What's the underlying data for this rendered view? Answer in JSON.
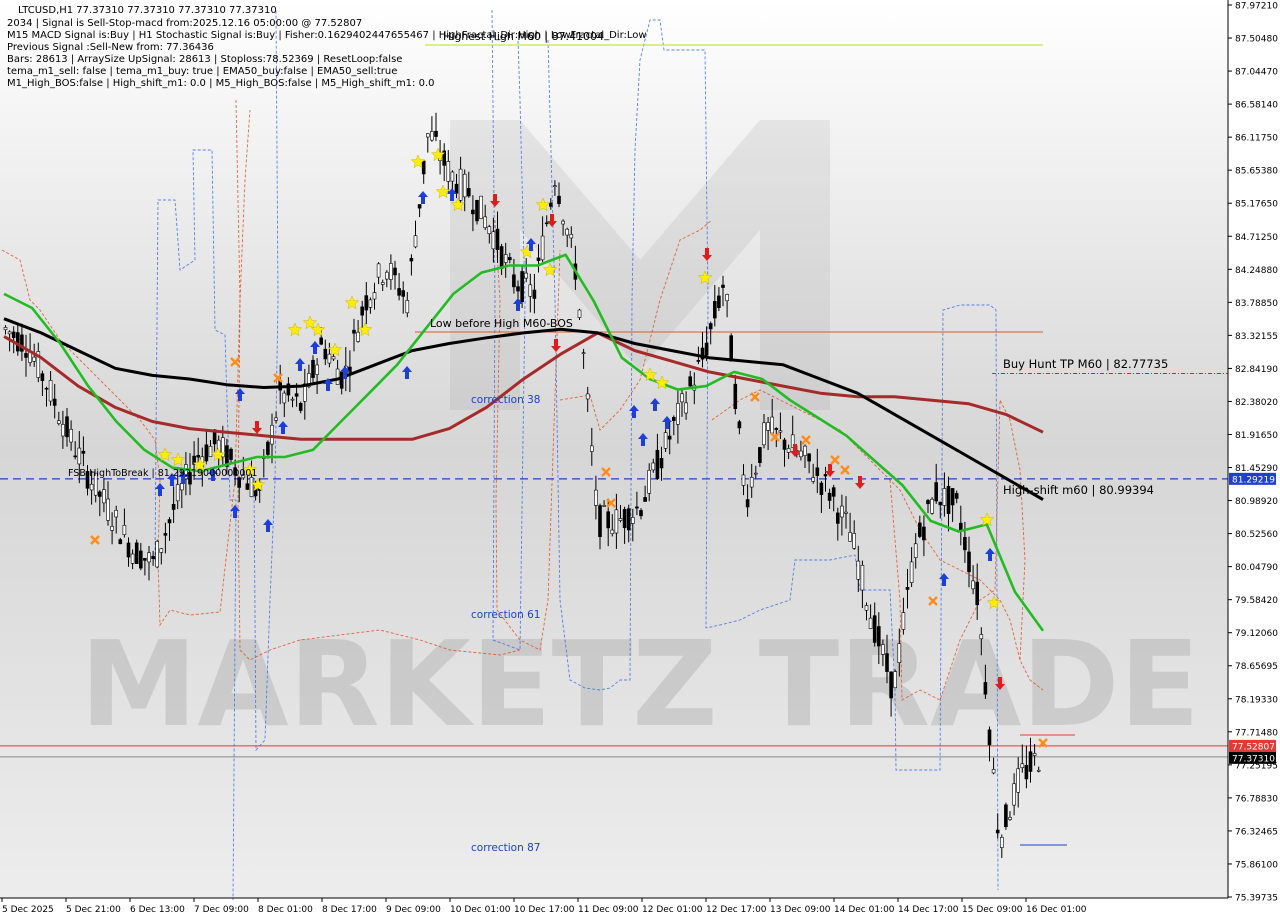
{
  "chart_data": {
    "type": "line",
    "symbol": "LTCUSD,H1",
    "ohlc_header": "LTCUSD,H1  77.37310 77.37310 77.37310 77.37310",
    "info_lines": [
      "2034 | Signal is Sell-Stop-macd from:2025.12.16 05:00:00 @ 77.52807",
      "M15 MACD Signal is:Buy | H1 Stochastic Signal is:Buy | Fisher:0.1629402447655467 | HighFractal_Dir:High | LowFractal_Dir:Low",
      "Previous Signal :Sell-New from: 77.36436",
      "Bars: 28613 | ArraySize UpSignal: 28613 | Stoploss:78.52369 | ResetLoop:false",
      "tema_m1_sell: false | tema_m1_buy: true | EMA50_buy:false | EMA50_sell:true",
      "M1_High_BOS:false | High_shift_m1: 0.0 | M5_High_BOS:false | M5_High_shift_m1: 0.0"
    ],
    "y_ticks": [
      "87.97210",
      "87.50480",
      "87.04470",
      "86.58140",
      "86.11750",
      "85.65380",
      "85.17650",
      "84.71250",
      "84.24880",
      "83.78850",
      "83.32155",
      "82.84190",
      "82.38020",
      "81.91650",
      "81.45290",
      "80.98920",
      "80.52560",
      "80.04790",
      "79.58420",
      "79.12060",
      "78.65695",
      "78.19330",
      "77.71480",
      "77.25195",
      "76.78830",
      "76.32465",
      "75.86100",
      "75.39735"
    ],
    "ylim": [
      75.39735,
      87.9721
    ],
    "x_ticks": [
      "5 Dec 2025",
      "5 Dec 21:00",
      "6 Dec 13:00",
      "7 Dec 09:00",
      "8 Dec 01:00",
      "8 Dec 17:00",
      "9 Dec 09:00",
      "10 Dec 01:00",
      "10 Dec 17:00",
      "11 Dec 09:00",
      "12 Dec 01:00",
      "12 Dec 17:00",
      "13 Dec 09:00",
      "14 Dec 01:00",
      "14 Dec 17:00",
      "15 Dec 09:00",
      "16 Dec 01:00"
    ],
    "price_tags": [
      {
        "label": "81.29219",
        "value": 81.29219,
        "color": "#1e40cc"
      },
      {
        "label": "77.52807",
        "value": 77.52807,
        "color": "#e53935"
      },
      {
        "label": "77.37310",
        "value": 77.3731,
        "color": "#000000"
      }
    ],
    "annotations": [
      {
        "text": "Highest High   M60 | 87.41004",
        "color": "#000000"
      },
      {
        "text": "Low before High   M60-BOS",
        "color": "#000000"
      },
      {
        "text": "Buy Hunt TP M60 | 82.77735",
        "color": "#000000"
      },
      {
        "text": "High-shift m60 | 80.99394",
        "color": "#000000"
      },
      {
        "text": "FSB-HighToBreak | 81.29219000000001",
        "color": "#000000"
      },
      {
        "text": "correction 38",
        "color": "#1e40cc"
      },
      {
        "text": "correction 61",
        "color": "#1e40cc"
      },
      {
        "text": "correction 87",
        "color": "#1e40cc"
      }
    ],
    "watermark": "MARKETZ TRADE",
    "series": [
      {
        "name": "",
        "color": "#22bb22",
        "values": [
          83.9,
          83.7,
          83.2,
          82.6,
          82.1,
          81.7,
          81.45,
          81.4,
          81.5,
          81.6,
          81.6,
          81.7,
          82.1,
          82.5,
          82.9,
          83.4,
          83.9,
          84.2,
          84.3,
          84.3,
          84.45,
          83.8,
          83.0,
          82.7,
          82.55,
          82.6,
          82.8,
          82.7,
          82.4,
          82.15,
          81.9,
          81.55,
          81.2,
          80.7,
          80.55,
          80.65,
          79.7,
          79.15
        ]
      },
      {
        "name": "",
        "color": "#000000",
        "values": [
          83.55,
          83.35,
          83.1,
          82.85,
          82.75,
          82.7,
          82.62,
          82.58,
          82.6,
          82.7,
          82.9,
          83.1,
          83.2,
          83.28,
          83.35,
          83.4,
          83.35,
          83.2,
          83.1,
          83.0,
          82.95,
          82.9,
          82.7,
          82.5,
          82.2,
          81.9,
          81.6,
          81.3,
          81.0
        ]
      },
      {
        "name": "",
        "color": "#a52a2a",
        "values": [
          83.3,
          83.0,
          82.6,
          82.3,
          82.1,
          82.0,
          81.95,
          81.9,
          81.85,
          81.85,
          81.85,
          81.85,
          82.0,
          82.3,
          82.7,
          83.05,
          83.35,
          83.1,
          82.95,
          82.8,
          82.7,
          82.6,
          82.5,
          82.45,
          82.45,
          82.4,
          82.35,
          82.2,
          81.95
        ]
      },
      {
        "name": "",
        "color": "#000000",
        "values": [
          83.4,
          83.2,
          82.6,
          81.9,
          81.3,
          80.8,
          80.3,
          80.1,
          80.9,
          81.6,
          81.8,
          81.4,
          81.1,
          82.5,
          82.3,
          83.2,
          82.7,
          83.8,
          84.3,
          83.8,
          86.2,
          85.6,
          85.3,
          84.8,
          84.1,
          83.9,
          85.6,
          84.2,
          80.7,
          80.7,
          80.9,
          81.6,
          82.3,
          83.0,
          84.1,
          81.0,
          82.0,
          81.8,
          81.5,
          81.1,
          80.5,
          79.3,
          78.3,
          80.3,
          81.1,
          80.9,
          79.6,
          76.2,
          77.1,
          77.4
        ]
      }
    ]
  }
}
